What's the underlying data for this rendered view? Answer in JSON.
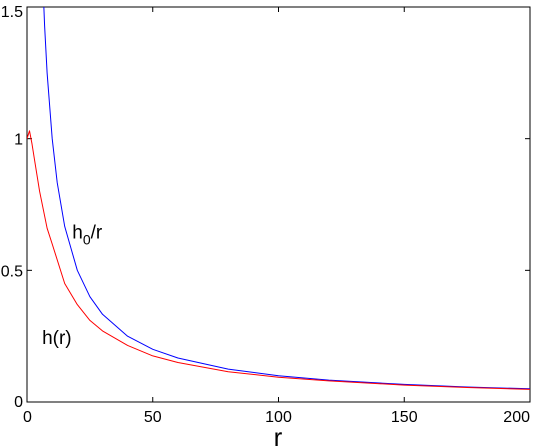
{
  "chart_data": {
    "type": "line",
    "xlabel": "r",
    "ylabel": "",
    "title": "",
    "xlim": [
      0,
      200
    ],
    "ylim": [
      0,
      1.5
    ],
    "x_ticks": [
      0,
      50,
      100,
      150,
      200
    ],
    "y_ticks": [
      0,
      0.5,
      1,
      1.5
    ],
    "x_tick_labels": [
      "0",
      "50",
      "100",
      "150",
      "200"
    ],
    "y_tick_labels": [
      "0",
      "0.5",
      "1",
      "1.5"
    ],
    "grid": false,
    "legend": "none",
    "series": [
      {
        "color": "#0000ff",
        "x": [
          5,
          6,
          7,
          8,
          10,
          12,
          15,
          20,
          25,
          30,
          40,
          50,
          60,
          80,
          100,
          120,
          150,
          175,
          200
        ],
        "y": [
          2.0,
          1.667,
          1.429,
          1.25,
          1.0,
          0.833,
          0.667,
          0.5,
          0.4,
          0.333,
          0.25,
          0.2,
          0.167,
          0.125,
          0.1,
          0.083,
          0.067,
          0.057,
          0.05
        ]
      },
      {
        "color": "#ff0000",
        "x": [
          0,
          1,
          2,
          3,
          5,
          8,
          10,
          15,
          20,
          25,
          30,
          40,
          50,
          60,
          80,
          100,
          120,
          150,
          175,
          200
        ],
        "y": [
          1.0,
          1.03,
          0.98,
          0.92,
          0.8,
          0.66,
          0.6,
          0.45,
          0.37,
          0.31,
          0.27,
          0.215,
          0.175,
          0.15,
          0.115,
          0.094,
          0.08,
          0.064,
          0.055,
          0.048
        ]
      }
    ],
    "annotations": [
      {
        "text": "h",
        "sub": "0",
        "tail": "/r",
        "x": 18,
        "y": 0.62
      },
      {
        "text": "h(r)",
        "x": 6,
        "y": 0.22
      }
    ]
  }
}
